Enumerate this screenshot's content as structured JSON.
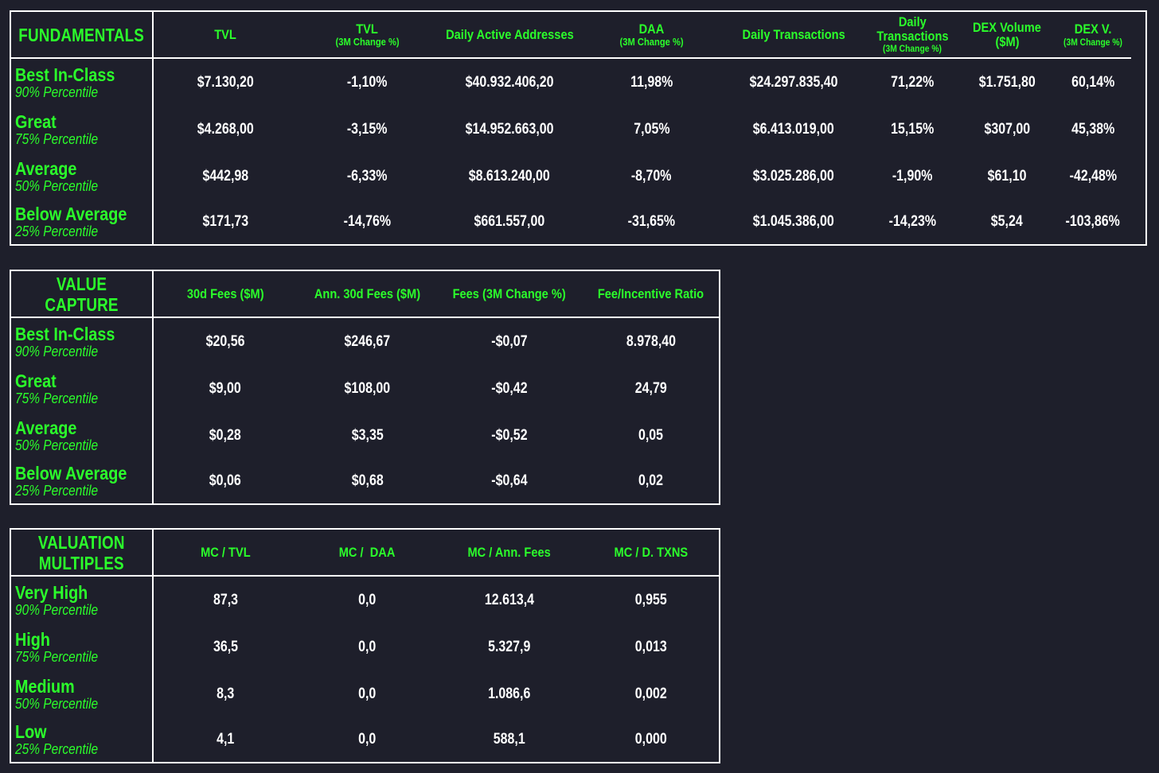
{
  "fundamentals": {
    "title": "FUNDAMENTALS",
    "columns": [
      {
        "main": "TVL",
        "sub": ""
      },
      {
        "main": "TVL",
        "sub": "(3M Change %)"
      },
      {
        "main": "Daily Active Addresses",
        "sub": ""
      },
      {
        "main": "DAA",
        "sub": "(3M Change %)"
      },
      {
        "main": "Daily Transactions",
        "sub": ""
      },
      {
        "main": "Daily",
        "main2": "Transactions",
        "sub": "(3M Change %)"
      },
      {
        "main": "DEX Volume",
        "main2": "($M)",
        "sub": ""
      },
      {
        "main": "DEX V.",
        "sub": "(3M Change %)"
      }
    ],
    "rows": [
      {
        "name": "Best In-Class",
        "pct": "90% Percentile",
        "values": [
          "$7.130,20",
          "-1,10%",
          "$40.932.406,20",
          "11,98%",
          "$24.297.835,40",
          "71,22%",
          "$1.751,80",
          "60,14%"
        ]
      },
      {
        "name": "Great",
        "pct": "75% Percentile",
        "values": [
          "$4.268,00",
          "-3,15%",
          "$14.952.663,00",
          "7,05%",
          "$6.413.019,00",
          "15,15%",
          "$307,00",
          "45,38%"
        ]
      },
      {
        "name": "Average",
        "pct": "50% Percentile",
        "values": [
          "$442,98",
          "-6,33%",
          "$8.613.240,00",
          "-8,70%",
          "$3.025.286,00",
          "-1,90%",
          "$61,10",
          "-42,48%"
        ]
      },
      {
        "name": "Below Average",
        "pct": "25% Percentile",
        "values": [
          "$171,73",
          "-14,76%",
          "$661.557,00",
          "-31,65%",
          "$1.045.386,00",
          "-14,23%",
          "$5,24",
          "-103,86%"
        ]
      }
    ]
  },
  "value_capture": {
    "title": "VALUE CAPTURE",
    "columns": [
      {
        "main": "30d Fees ($M)"
      },
      {
        "main": "Ann. 30d Fees ($M)"
      },
      {
        "main": "Fees (3M Change %)"
      },
      {
        "main": "Fee/Incentive Ratio"
      }
    ],
    "rows": [
      {
        "name": "Best In-Class",
        "pct": "90% Percentile",
        "values": [
          "$20,56",
          "$246,67",
          "-$0,07",
          "8.978,40"
        ]
      },
      {
        "name": "Great",
        "pct": "75% Percentile",
        "values": [
          "$9,00",
          "$108,00",
          "-$0,42",
          "24,79"
        ]
      },
      {
        "name": "Average",
        "pct": "50% Percentile",
        "values": [
          "$0,28",
          "$3,35",
          "-$0,52",
          "0,05"
        ]
      },
      {
        "name": "Below Average",
        "pct": "25% Percentile",
        "values": [
          "$0,06",
          "$0,68",
          "-$0,64",
          "0,02"
        ]
      }
    ]
  },
  "valuation_multiples": {
    "title_line1": "VALUATION",
    "title_line2": "MULTIPLES",
    "columns": [
      {
        "main": "MC / TVL"
      },
      {
        "main": "MC /  DAA"
      },
      {
        "main": "MC / Ann. Fees"
      },
      {
        "main": "MC / D. TXNS"
      }
    ],
    "rows": [
      {
        "name": "Very High",
        "pct": "90% Percentile",
        "values": [
          "87,3",
          "0,0",
          "12.613,4",
          "0,955"
        ]
      },
      {
        "name": "High",
        "pct": "75% Percentile",
        "values": [
          "36,5",
          "0,0",
          "5.327,9",
          "0,013"
        ]
      },
      {
        "name": "Medium",
        "pct": "50% Percentile",
        "values": [
          "8,3",
          "0,0",
          "1.086,6",
          "0,002"
        ]
      },
      {
        "name": "Low",
        "pct": "25% Percentile",
        "values": [
          "4,1",
          "0,0",
          "588,1",
          "0,000"
        ]
      }
    ]
  }
}
